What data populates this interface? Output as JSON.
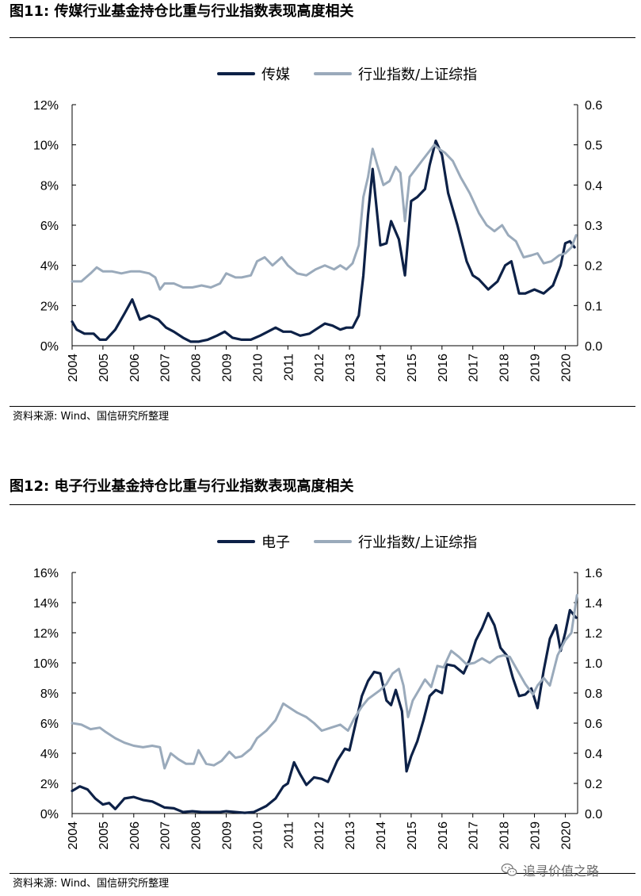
{
  "figures": [
    {
      "title": "图11:  传媒行业基金持仓比重与行业指数表现高度相关",
      "source": "资料来源: Wind、国信研究所整理"
    },
    {
      "title": "图12:  电子行业基金持仓比重与行业指数表现高度相关",
      "source": "资料来源: Wind、国信研究所整理"
    }
  ],
  "watermark": {
    "text": "追寻价值之路",
    "icon": "wechat-icon"
  },
  "colors": {
    "dark": "#0d2147",
    "gray": "#9aaabb",
    "axis": "#000000"
  },
  "chart_data": [
    {
      "type": "line",
      "legend_position": "top-center",
      "grid": false,
      "x_ticks": [
        "2004",
        "2005",
        "2006",
        "2007",
        "2008",
        "2009",
        "2010",
        "2011",
        "2012",
        "2013",
        "2014",
        "2015",
        "2016",
        "2017",
        "2018",
        "2019",
        "2020"
      ],
      "xlim": [
        2004,
        2020.4
      ],
      "y_left": {
        "ticks": [
          "0%",
          "2%",
          "4%",
          "6%",
          "8%",
          "10%",
          "12%"
        ],
        "ylim": [
          0,
          12
        ]
      },
      "y_right": {
        "ticks": [
          "0.0",
          "0.1",
          "0.2",
          "0.3",
          "0.4",
          "0.5",
          "0.6"
        ],
        "ylim": [
          0,
          0.6
        ]
      },
      "series": [
        {
          "name": "传媒",
          "axis": "left",
          "color": "#0d2147",
          "x": [
            2004,
            2004.15,
            2004.4,
            2004.7,
            2004.9,
            2005.1,
            2005.4,
            2005.7,
            2005.95,
            2006.2,
            2006.5,
            2006.8,
            2007.05,
            2007.3,
            2007.6,
            2007.85,
            2008.1,
            2008.4,
            2008.7,
            2008.95,
            2009.2,
            2009.5,
            2009.8,
            2010.1,
            2010.35,
            2010.6,
            2010.85,
            2011.1,
            2011.4,
            2011.7,
            2011.9,
            2012.2,
            2012.45,
            2012.7,
            2012.9,
            2013.1,
            2013.3,
            2013.45,
            2013.6,
            2013.75,
            2014.0,
            2014.2,
            2014.35,
            2014.6,
            2014.8,
            2015.0,
            2015.2,
            2015.45,
            2015.6,
            2015.8,
            2016.0,
            2016.2,
            2016.5,
            2016.8,
            2017.0,
            2017.2,
            2017.5,
            2017.8,
            2018.05,
            2018.25,
            2018.5,
            2018.7,
            2019.0,
            2019.3,
            2019.6,
            2019.85,
            2020.0,
            2020.15,
            2020.3
          ],
          "y": [
            1.2,
            0.8,
            0.6,
            0.6,
            0.3,
            0.3,
            0.8,
            1.6,
            2.3,
            1.3,
            1.5,
            1.3,
            0.9,
            0.7,
            0.4,
            0.2,
            0.2,
            0.3,
            0.5,
            0.7,
            0.4,
            0.3,
            0.3,
            0.5,
            0.7,
            0.9,
            0.7,
            0.7,
            0.5,
            0.6,
            0.8,
            1.1,
            1.0,
            0.8,
            0.9,
            0.9,
            1.5,
            3.5,
            6.5,
            8.8,
            5.0,
            5.1,
            6.2,
            5.3,
            3.5,
            7.2,
            7.4,
            7.8,
            9.0,
            10.2,
            9.5,
            7.6,
            6.0,
            4.2,
            3.5,
            3.3,
            2.8,
            3.2,
            4.0,
            4.2,
            2.6,
            2.6,
            2.8,
            2.6,
            3.0,
            4.0,
            5.1,
            5.2,
            4.9
          ]
        },
        {
          "name": "行业指数/上证综指",
          "axis": "right",
          "color": "#9aaabb",
          "x": [
            2004,
            2004.3,
            2004.6,
            2004.8,
            2005.0,
            2005.3,
            2005.6,
            2005.9,
            2006.2,
            2006.5,
            2006.7,
            2006.85,
            2007.0,
            2007.3,
            2007.6,
            2007.9,
            2008.2,
            2008.5,
            2008.8,
            2009.0,
            2009.3,
            2009.5,
            2009.8,
            2010.0,
            2010.25,
            2010.5,
            2010.8,
            2011.0,
            2011.3,
            2011.6,
            2011.9,
            2012.2,
            2012.5,
            2012.7,
            2012.9,
            2013.1,
            2013.3,
            2013.45,
            2013.6,
            2013.75,
            2013.9,
            2014.1,
            2014.3,
            2014.5,
            2014.65,
            2014.8,
            2014.95,
            2015.15,
            2015.35,
            2015.55,
            2015.75,
            2015.9,
            2016.1,
            2016.35,
            2016.6,
            2016.9,
            2017.2,
            2017.45,
            2017.7,
            2017.95,
            2018.15,
            2018.4,
            2018.65,
            2018.9,
            2019.1,
            2019.3,
            2019.55,
            2019.8,
            2020.0,
            2020.2,
            2020.35
          ],
          "y": [
            0.16,
            0.16,
            0.18,
            0.195,
            0.185,
            0.185,
            0.18,
            0.185,
            0.185,
            0.18,
            0.17,
            0.14,
            0.155,
            0.155,
            0.145,
            0.145,
            0.15,
            0.145,
            0.155,
            0.18,
            0.17,
            0.17,
            0.175,
            0.21,
            0.22,
            0.2,
            0.22,
            0.2,
            0.18,
            0.175,
            0.19,
            0.2,
            0.19,
            0.2,
            0.19,
            0.205,
            0.25,
            0.37,
            0.42,
            0.49,
            0.45,
            0.4,
            0.41,
            0.445,
            0.43,
            0.31,
            0.42,
            0.44,
            0.46,
            0.48,
            0.5,
            0.49,
            0.48,
            0.46,
            0.42,
            0.38,
            0.33,
            0.3,
            0.285,
            0.3,
            0.275,
            0.26,
            0.22,
            0.225,
            0.23,
            0.205,
            0.21,
            0.225,
            0.23,
            0.245,
            0.275
          ]
        }
      ]
    },
    {
      "type": "line",
      "legend_position": "top-center",
      "grid": false,
      "x_ticks": [
        "2004",
        "2005",
        "2006",
        "2007",
        "2008",
        "2009",
        "2010",
        "2011",
        "2012",
        "2013",
        "2014",
        "2015",
        "2016",
        "2017",
        "2018",
        "2019",
        "2020"
      ],
      "xlim": [
        2004,
        2020.4
      ],
      "y_left": {
        "ticks": [
          "0%",
          "2%",
          "4%",
          "6%",
          "8%",
          "10%",
          "12%",
          "14%",
          "16%"
        ],
        "ylim": [
          0,
          16
        ]
      },
      "y_right": {
        "ticks": [
          "0.0",
          "0.2",
          "0.4",
          "0.6",
          "0.8",
          "1.0",
          "1.2",
          "1.4",
          "1.6"
        ],
        "ylim": [
          0,
          1.6
        ]
      },
      "series": [
        {
          "name": "电子",
          "axis": "left",
          "color": "#0d2147",
          "x": [
            2004,
            2004.25,
            2004.5,
            2004.75,
            2005.0,
            2005.2,
            2005.4,
            2005.7,
            2006.0,
            2006.3,
            2006.6,
            2006.8,
            2007.0,
            2007.3,
            2007.6,
            2007.9,
            2008.2,
            2008.5,
            2008.8,
            2009.0,
            2009.3,
            2009.6,
            2009.9,
            2010.1,
            2010.3,
            2010.6,
            2010.85,
            2011.0,
            2011.2,
            2011.4,
            2011.6,
            2011.85,
            2012.1,
            2012.3,
            2012.6,
            2012.85,
            2013.0,
            2013.2,
            2013.4,
            2013.6,
            2013.8,
            2014.0,
            2014.2,
            2014.35,
            2014.5,
            2014.7,
            2014.85,
            2015.0,
            2015.2,
            2015.4,
            2015.6,
            2015.8,
            2016.0,
            2016.15,
            2016.4,
            2016.7,
            2016.9,
            2017.1,
            2017.3,
            2017.5,
            2017.7,
            2017.9,
            2018.1,
            2018.3,
            2018.5,
            2018.7,
            2018.9,
            2019.1,
            2019.3,
            2019.5,
            2019.7,
            2019.85,
            2020.0,
            2020.15,
            2020.35
          ],
          "y": [
            1.5,
            1.8,
            1.6,
            1.0,
            0.6,
            0.7,
            0.3,
            1.0,
            1.1,
            0.9,
            0.8,
            0.6,
            0.4,
            0.35,
            0.1,
            0.15,
            0.1,
            0.1,
            0.1,
            0.15,
            0.1,
            0.05,
            0.1,
            0.3,
            0.5,
            1.0,
            1.8,
            2.0,
            3.4,
            2.6,
            1.9,
            2.4,
            2.3,
            2.1,
            3.5,
            4.3,
            4.2,
            6.0,
            7.8,
            8.8,
            9.4,
            9.3,
            7.5,
            7.2,
            8.2,
            6.8,
            2.8,
            3.8,
            4.8,
            6.2,
            7.8,
            8.2,
            8.0,
            9.9,
            9.8,
            9.3,
            10.2,
            11.5,
            12.3,
            13.3,
            12.5,
            11.0,
            10.5,
            9.0,
            7.8,
            7.9,
            8.3,
            7.0,
            9.5,
            11.6,
            12.5,
            10.8,
            12.0,
            13.5,
            13.0
          ]
        },
        {
          "name": "行业指数/上证综指",
          "axis": "right",
          "color": "#9aaabb",
          "x": [
            2004,
            2004.3,
            2004.6,
            2004.9,
            2005.1,
            2005.4,
            2005.7,
            2006.0,
            2006.3,
            2006.6,
            2006.85,
            2007.0,
            2007.2,
            2007.45,
            2007.7,
            2007.95,
            2008.1,
            2008.35,
            2008.6,
            2008.85,
            2009.1,
            2009.3,
            2009.5,
            2009.8,
            2010.0,
            2010.3,
            2010.6,
            2010.85,
            2011.0,
            2011.3,
            2011.6,
            2011.85,
            2012.1,
            2012.4,
            2012.7,
            2012.95,
            2013.15,
            2013.4,
            2013.6,
            2013.8,
            2014.0,
            2014.2,
            2014.4,
            2014.6,
            2014.75,
            2014.9,
            2015.05,
            2015.25,
            2015.45,
            2015.65,
            2015.85,
            2016.05,
            2016.3,
            2016.55,
            2016.8,
            2017.05,
            2017.3,
            2017.55,
            2017.8,
            2018.0,
            2018.2,
            2018.45,
            2018.7,
            2018.95,
            2019.1,
            2019.3,
            2019.5,
            2019.75,
            2020.0,
            2020.2,
            2020.38
          ],
          "y": [
            0.6,
            0.59,
            0.56,
            0.57,
            0.54,
            0.5,
            0.47,
            0.45,
            0.44,
            0.45,
            0.44,
            0.3,
            0.4,
            0.36,
            0.33,
            0.33,
            0.42,
            0.33,
            0.32,
            0.35,
            0.41,
            0.37,
            0.38,
            0.43,
            0.5,
            0.55,
            0.62,
            0.73,
            0.71,
            0.67,
            0.64,
            0.6,
            0.55,
            0.57,
            0.59,
            0.55,
            0.63,
            0.71,
            0.76,
            0.79,
            0.82,
            0.86,
            0.93,
            0.96,
            0.85,
            0.64,
            0.75,
            0.82,
            0.89,
            0.84,
            0.98,
            0.97,
            1.08,
            1.04,
            0.99,
            1.0,
            1.03,
            1.0,
            1.04,
            1.05,
            1.04,
            0.95,
            0.86,
            0.79,
            0.85,
            0.9,
            0.85,
            1.05,
            1.15,
            1.2,
            1.45
          ]
        }
      ]
    }
  ]
}
